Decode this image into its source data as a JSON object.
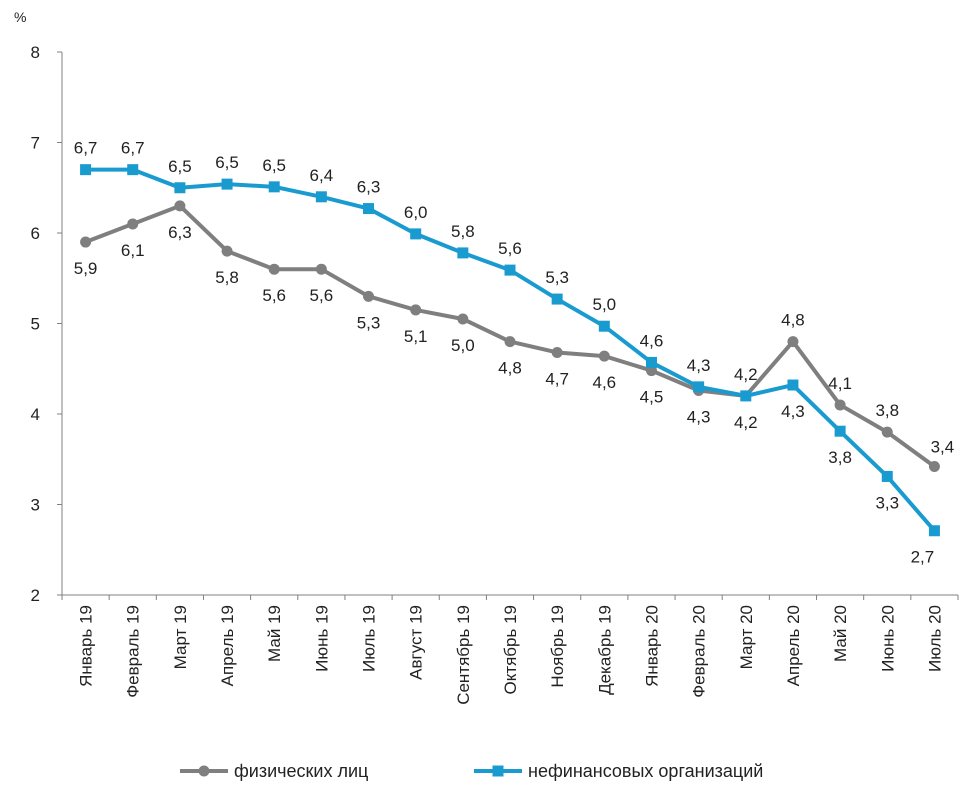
{
  "chart_data": {
    "type": "line",
    "unit_label": "%",
    "ylim": [
      2,
      8
    ],
    "yticks": [
      2,
      3,
      4,
      5,
      6,
      7,
      8
    ],
    "grid": false,
    "legend_position": "bottom",
    "categories": [
      "Январь 19",
      "Февраль 19",
      "Март 19",
      "Апрель 19",
      "Май 19",
      "Июнь 19",
      "Июль 19",
      "Август 19",
      "Сентябрь 19",
      "Октябрь 19",
      "Ноябрь 19",
      "Декабрь 19",
      "Январь 20",
      "Февраль 20",
      "Март 20",
      "Апрель 20",
      "Май 20",
      "Июнь 20",
      "Июль 20"
    ],
    "series": [
      {
        "name": "физических лиц",
        "color": "#7f7f7f",
        "marker": "circle",
        "values": [
          5.9,
          6.1,
          6.3,
          5.8,
          5.6,
          5.6,
          5.3,
          5.15,
          5.05,
          4.8,
          4.68,
          4.64,
          4.48,
          4.26,
          4.2,
          4.8,
          4.1,
          3.8,
          3.42
        ],
        "labels": [
          "5,9",
          "6,1",
          "6,3",
          "5,8",
          "5,6",
          "5,6",
          "5,3",
          "5,1",
          "5,0",
          "4,8",
          "4,7",
          "4,6",
          "4,5",
          "4,3",
          "4,2",
          "4,8",
          "4,1",
          "3,8",
          "3,4"
        ],
        "label_pos": [
          "below",
          "below",
          "below",
          "below",
          "below",
          "below",
          "below",
          "below",
          "below",
          "below",
          "below",
          "below",
          "below",
          "below",
          "below",
          "above",
          "above",
          "above",
          "above-right"
        ]
      },
      {
        "name": "нефинансовых организаций",
        "color": "#1a9bd0",
        "marker": "square",
        "values": [
          6.7,
          6.7,
          6.5,
          6.54,
          6.51,
          6.4,
          6.27,
          5.99,
          5.78,
          5.59,
          5.27,
          4.97,
          4.57,
          4.3,
          4.2,
          4.32,
          3.81,
          3.31,
          2.71
        ],
        "labels": [
          "6,7",
          "6,7",
          "6,5",
          "6,5",
          "6,5",
          "6,4",
          "6,3",
          "6,0",
          "5,8",
          "5,6",
          "5,3",
          "5,0",
          "4,6",
          "4,3",
          "4,2",
          "4,3",
          "3,8",
          "3,3",
          "2,7"
        ],
        "label_pos": [
          "above",
          "above",
          "above",
          "above",
          "above",
          "above",
          "above",
          "above",
          "above",
          "above",
          "above",
          "above",
          "above",
          "above",
          "above",
          "below",
          "below",
          "below",
          "below-left"
        ]
      }
    ]
  }
}
